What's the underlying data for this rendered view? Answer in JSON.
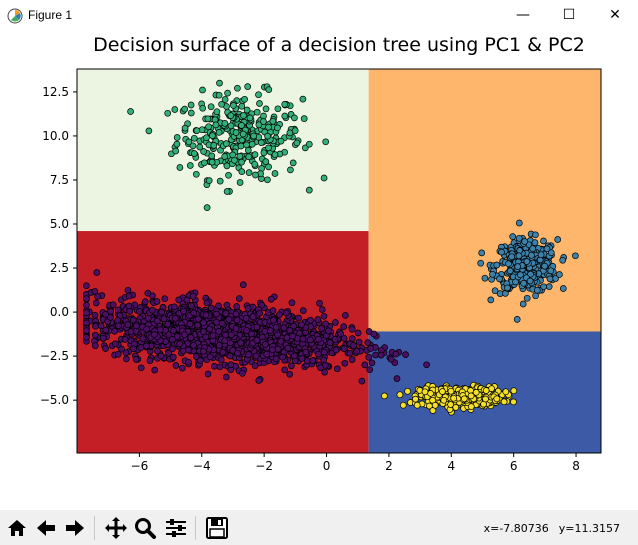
{
  "window": {
    "title": "Figure 1",
    "min_label": "—",
    "max_label": "☐",
    "close_label": "✕"
  },
  "toolbar": {
    "buttons": [
      "home-icon",
      "back-icon",
      "forward-icon",
      "pan-icon",
      "zoom-icon",
      "configure-subplots-icon",
      "save-icon"
    ],
    "coords_x": "x=-7.80736",
    "coords_y": "y=11.3157"
  },
  "chart_data": {
    "type": "scatter",
    "title": "Decision surface of a decision tree using PC1 & PC2",
    "xlabel": "",
    "ylabel": "",
    "xlim": [
      -8.0,
      8.8
    ],
    "ylim": [
      -8.0,
      13.8
    ],
    "xticks": [
      -6,
      -4,
      -2,
      0,
      2,
      4,
      6,
      8
    ],
    "xtick_labels": [
      "−6",
      "−4",
      "−2",
      "0",
      "2",
      "4",
      "6",
      "8"
    ],
    "yticks": [
      -5.0,
      -2.5,
      0.0,
      2.5,
      5.0,
      7.5,
      10.0,
      12.5
    ],
    "ytick_labels": [
      "−5.0",
      "−2.5",
      "0.0",
      "2.5",
      "5.0",
      "7.5",
      "10.0",
      "12.5"
    ],
    "regions": [
      {
        "xmin": -8.0,
        "xmax": 1.35,
        "ymin": 4.6,
        "ymax": 13.8,
        "color": "#ebf5e2"
      },
      {
        "xmin": -8.0,
        "xmax": 1.35,
        "ymin": -8.0,
        "ymax": 4.6,
        "color": "#c41f26"
      },
      {
        "xmin": 1.35,
        "xmax": 8.8,
        "ymin": -1.1,
        "ymax": 13.8,
        "color": "#fdb66b"
      },
      {
        "xmin": 1.35,
        "xmax": 8.8,
        "ymin": -8.0,
        "ymax": -1.1,
        "color": "#3d5aa7"
      }
    ],
    "clusters": [
      {
        "color": "#33b07a",
        "count": 320,
        "center": [
          -2.8,
          10.0
        ],
        "spread": [
          1.0,
          1.2
        ]
      },
      {
        "color": "#3b82ad",
        "count": 380,
        "center": [
          6.4,
          2.6
        ],
        "spread": [
          0.5,
          0.75
        ]
      },
      {
        "color": "#f4e024",
        "count": 400,
        "center": [
          4.3,
          -4.8
        ],
        "spread": [
          0.65,
          0.28
        ]
      },
      {
        "color": "#4b0f63",
        "count": 1700,
        "center": [
          -3.4,
          -1.2
        ],
        "spread": [
          2.0,
          0.8
        ]
      }
    ]
  }
}
